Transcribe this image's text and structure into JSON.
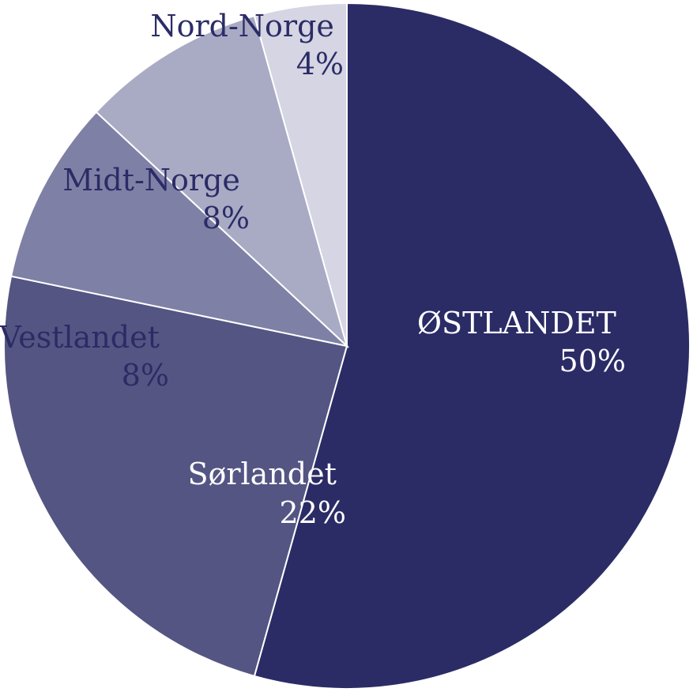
{
  "chart_data": {
    "type": "pie",
    "title": "",
    "slices": [
      {
        "label": "ØSTLANDET",
        "value_label": "50%",
        "value": 50,
        "color": "#2b2c66",
        "text_color": "#ffffff"
      },
      {
        "label": "Sørlandet",
        "value_label": "22%",
        "value": 22,
        "color": "#545583",
        "text_color": "#ffffff"
      },
      {
        "label": "Vestlandet",
        "value_label": "8%",
        "value": 8,
        "color": "#7f80a5",
        "text_color": "#2b2c66"
      },
      {
        "label": "Midt-Norge",
        "value_label": "8%",
        "value": 8,
        "color": "#a9aac4",
        "text_color": "#2b2c66"
      },
      {
        "label": "Nord-Norge",
        "value_label": "4%",
        "value": 4,
        "color": "#d5d5e3",
        "text_color": "#2b2c66"
      }
    ]
  }
}
